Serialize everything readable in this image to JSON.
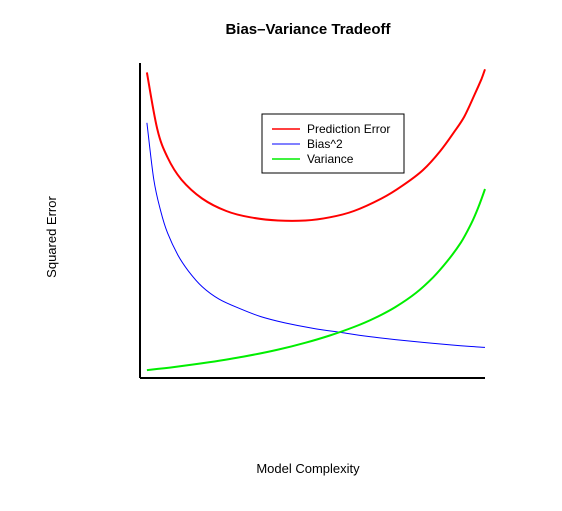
{
  "chart_data": {
    "type": "line",
    "title": "Bias–Variance Tradeoff",
    "xlabel": "Model Complexity",
    "ylabel": "Squared Error",
    "x_ticks_shown": false,
    "y_ticks_shown": false,
    "grid": false,
    "legend_position": "top-center",
    "xlim": [
      0,
      1
    ],
    "ylim": [
      0,
      1
    ],
    "series": [
      {
        "name": "Prediction Error",
        "color": "#ff0000",
        "x": [
          0.02,
          0.05,
          0.08,
          0.12,
          0.18,
          0.25,
          0.32,
          0.4,
          0.48,
          0.55,
          0.62,
          0.7,
          0.76,
          0.82,
          0.87,
          0.91,
          0.94,
          0.97,
          0.99,
          1.0
        ],
        "y": [
          0.97,
          0.79,
          0.7,
          0.63,
          0.57,
          0.53,
          0.51,
          0.5,
          0.5,
          0.51,
          0.53,
          0.57,
          0.61,
          0.66,
          0.72,
          0.78,
          0.83,
          0.9,
          0.95,
          0.98
        ]
      },
      {
        "name": "Bias^2",
        "color": "#0000ff",
        "x": [
          0.02,
          0.04,
          0.06,
          0.08,
          0.11,
          0.14,
          0.18,
          0.23,
          0.29,
          0.35,
          0.42,
          0.5,
          0.58,
          0.66,
          0.74,
          0.82,
          0.9,
          0.96,
          1.0
        ],
        "y": [
          0.81,
          0.63,
          0.53,
          0.46,
          0.39,
          0.34,
          0.29,
          0.25,
          0.22,
          0.195,
          0.175,
          0.158,
          0.145,
          0.132,
          0.122,
          0.113,
          0.105,
          0.1,
          0.097
        ]
      },
      {
        "name": "Variance",
        "color": "#00ee00",
        "x": [
          0.02,
          0.1,
          0.2,
          0.3,
          0.4,
          0.48,
          0.55,
          0.62,
          0.68,
          0.74,
          0.8,
          0.85,
          0.89,
          0.93,
          0.96,
          0.98,
          1.0
        ],
        "y": [
          0.025,
          0.035,
          0.05,
          0.068,
          0.09,
          0.112,
          0.135,
          0.162,
          0.19,
          0.225,
          0.27,
          0.32,
          0.37,
          0.43,
          0.49,
          0.54,
          0.6
        ]
      }
    ]
  }
}
